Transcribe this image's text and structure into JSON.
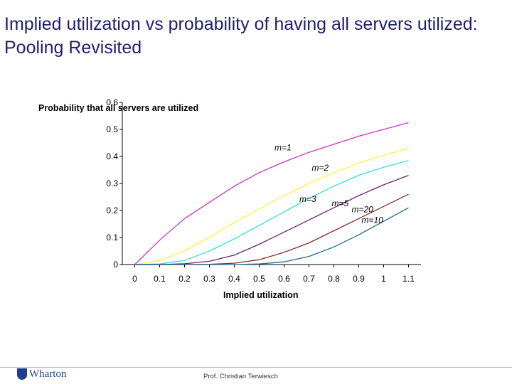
{
  "slide": {
    "title": "Implied utilization vs probability of having all servers utilized: Pooling Revisited",
    "footer": "Prof. Christian Terwiesch",
    "logo_text": "Wharton"
  },
  "chart_data": {
    "type": "line",
    "title": "",
    "xlabel": "Implied utilization",
    "ylabel": "Probability that all servers are utilized",
    "xlim": [
      -0.05,
      1.15
    ],
    "ylim": [
      0,
      0.6
    ],
    "x_ticks": [
      "0",
      "0.1",
      "0.2",
      "0.3",
      "0.4",
      "0.5",
      "0.6",
      "0.7",
      "0.8",
      "0.9",
      "1",
      "1.1"
    ],
    "y_ticks": [
      "0",
      "0.1",
      "0.2",
      "0.3",
      "0.4",
      "0.5",
      "0.6"
    ],
    "grid": false,
    "series": [
      {
        "name": "m=1",
        "color": "#cc33cc",
        "x": [
          0,
          0.1,
          0.2,
          0.3,
          0.4,
          0.5,
          0.6,
          0.7,
          0.8,
          0.9,
          1.0,
          1.1
        ],
        "y": [
          0,
          0.09,
          0.17,
          0.23,
          0.29,
          0.34,
          0.38,
          0.415,
          0.445,
          0.475,
          0.5,
          0.525
        ]
      },
      {
        "name": "m=2",
        "color": "#ffee44",
        "x": [
          0,
          0.1,
          0.2,
          0.3,
          0.4,
          0.5,
          0.6,
          0.7,
          0.8,
          0.9,
          1.0,
          1.1
        ],
        "y": [
          0,
          0.015,
          0.05,
          0.1,
          0.155,
          0.205,
          0.255,
          0.3,
          0.34,
          0.375,
          0.405,
          0.43
        ]
      },
      {
        "name": "m=3",
        "color": "#33dddd",
        "x": [
          0,
          0.1,
          0.2,
          0.3,
          0.4,
          0.5,
          0.6,
          0.7,
          0.8,
          0.9,
          1.0,
          1.1
        ],
        "y": [
          0,
          0.002,
          0.015,
          0.05,
          0.095,
          0.145,
          0.195,
          0.245,
          0.29,
          0.33,
          0.36,
          0.385
        ]
      },
      {
        "name": "m=5",
        "color": "#6e1e6e",
        "x": [
          0,
          0.1,
          0.2,
          0.3,
          0.4,
          0.5,
          0.6,
          0.7,
          0.8,
          0.9,
          1.0,
          1.1
        ],
        "y": [
          0,
          0,
          0.003,
          0.012,
          0.035,
          0.075,
          0.12,
          0.165,
          0.21,
          0.255,
          0.295,
          0.33
        ]
      },
      {
        "name": "m=10",
        "color": "#8b2a2a",
        "x": [
          0,
          0.1,
          0.2,
          0.3,
          0.4,
          0.5,
          0.6,
          0.7,
          0.8,
          0.9,
          1.0,
          1.1
        ],
        "y": [
          0,
          0,
          0,
          0.001,
          0.005,
          0.018,
          0.045,
          0.08,
          0.125,
          0.17,
          0.215,
          0.26
        ]
      },
      {
        "name": "m=20",
        "color": "#1f6a96",
        "x": [
          0,
          0.1,
          0.2,
          0.3,
          0.4,
          0.5,
          0.6,
          0.7,
          0.8,
          0.9,
          1.0,
          1.1
        ],
        "y": [
          0,
          0,
          0,
          0,
          0,
          0.002,
          0.01,
          0.03,
          0.065,
          0.11,
          0.16,
          0.21
        ]
      }
    ],
    "annotations": [
      "m=1",
      "m=2",
      "m=3",
      "m=5",
      "m=10",
      "m=20"
    ]
  }
}
